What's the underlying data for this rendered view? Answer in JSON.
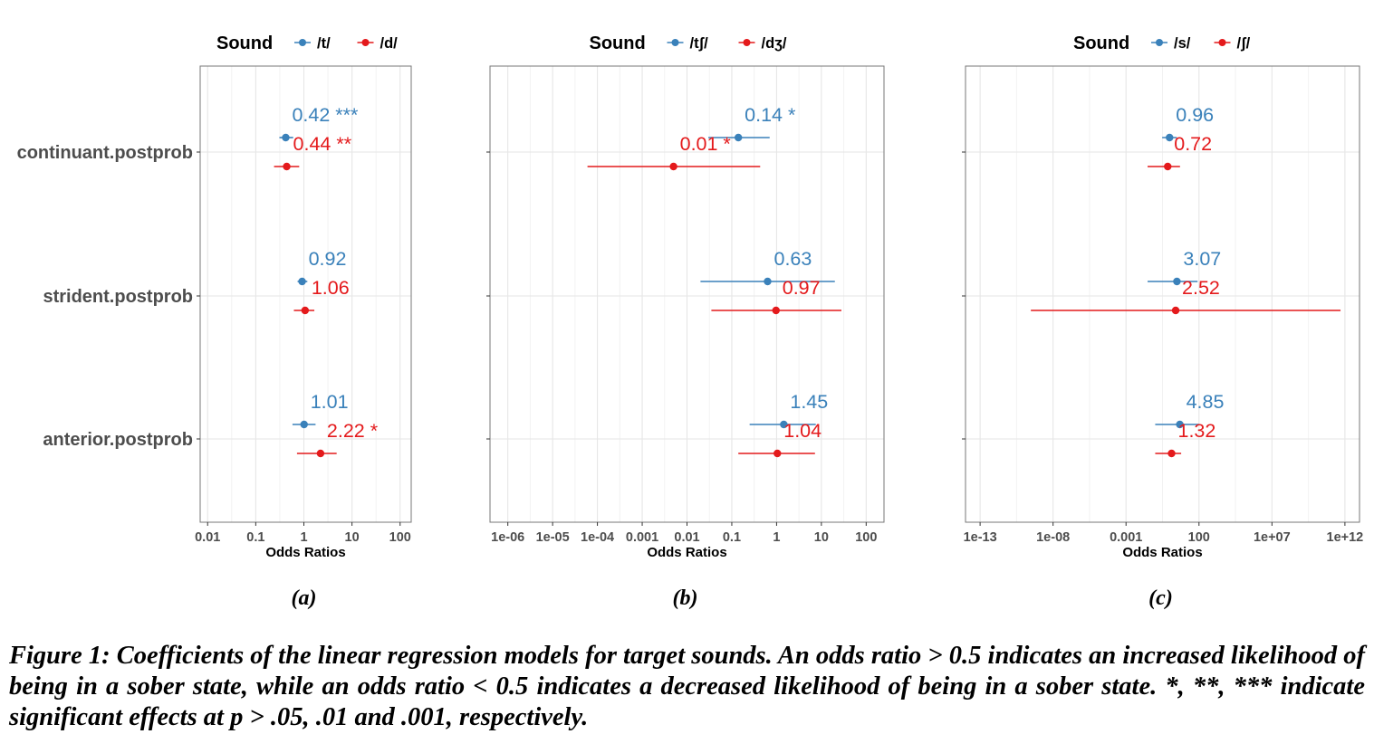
{
  "chart_data": [
    {
      "type": "forest",
      "panel_label": "(a)",
      "legend_title": "Sound",
      "xlabel": "Odds Ratios",
      "x_scale": "log10",
      "xlim": [
        0.007,
        170
      ],
      "x_ticks": [
        0.01,
        0.1,
        1,
        10,
        100
      ],
      "x_tick_labels": [
        "0.01",
        "0.1",
        "1",
        "10",
        "100"
      ],
      "categories": [
        "continuant.postprob",
        "strident.postprob",
        "anterior.postprob"
      ],
      "series": [
        {
          "name": "/t/",
          "color": "#3A81BA",
          "estimates": [
            0.42,
            0.92,
            1.01
          ],
          "ci_low": [
            0.31,
            0.74,
            0.58
          ],
          "ci_high": [
            0.6,
            1.18,
            1.75
          ],
          "labels": [
            "0.42 ***",
            "0.92",
            "1.01"
          ]
        },
        {
          "name": "/d/",
          "color": "#E41A1C",
          "estimates": [
            0.44,
            1.06,
            2.22
          ],
          "ci_low": [
            0.24,
            0.62,
            0.72
          ],
          "ci_high": [
            0.8,
            1.65,
            4.8
          ],
          "labels": [
            "0.44 **",
            "1.06",
            "2.22 *"
          ]
        }
      ]
    },
    {
      "type": "forest",
      "panel_label": "(b)",
      "legend_title": "Sound",
      "xlabel": "Odds Ratios",
      "x_scale": "log10",
      "xlim": [
        4e-07,
        250
      ],
      "x_ticks": [
        1e-06,
        1e-05,
        0.0001,
        0.001,
        0.01,
        0.1,
        1,
        10,
        100
      ],
      "x_tick_labels": [
        "1e-06",
        "1e-05",
        "1e-04",
        "0.001",
        "0.01",
        "0.1",
        "1",
        "10",
        "100"
      ],
      "categories": [
        "continuant.postprob",
        "strident.postprob",
        "anterior.postprob"
      ],
      "series": [
        {
          "name": "/tʃ/",
          "color": "#3A81BA",
          "estimates": [
            0.14,
            0.63,
            1.45
          ],
          "ci_low": [
            0.03,
            0.02,
            0.25
          ],
          "ci_high": [
            0.7,
            20,
            7.5
          ],
          "labels": [
            "0.14 *",
            "0.63",
            "1.45"
          ]
        },
        {
          "name": "/dʒ/",
          "color": "#E41A1C",
          "estimates": [
            0.005,
            0.97,
            1.04
          ],
          "ci_low": [
            6e-05,
            0.035,
            0.14
          ],
          "ci_high": [
            0.43,
            28,
            7.2
          ],
          "labels": [
            "0.01 *",
            "0.97",
            "1.04"
          ]
        }
      ]
    },
    {
      "type": "forest",
      "panel_label": "(c)",
      "legend_title": "Sound",
      "xlabel": "Odds Ratios",
      "x_scale": "log10",
      "xlim": [
        1e-14,
        10000000000000.0
      ],
      "x_ticks": [
        1e-13,
        1e-08,
        0.001,
        100,
        10000000.0,
        1000000000000.0
      ],
      "x_tick_labels": [
        "1e-13",
        "1e-08",
        "0.001",
        "100",
        "1e+07",
        "1e+12"
      ],
      "categories": [
        "continuant.postprob",
        "strident.postprob",
        "anterior.postprob"
      ],
      "series": [
        {
          "name": "/s/",
          "color": "#3A81BA",
          "estimates": [
            0.96,
            3.07,
            4.85
          ],
          "ci_low": [
            0.3,
            0.03,
            0.1
          ],
          "ci_high": [
            3,
            80,
            100
          ],
          "labels": [
            "0.96",
            "3.07",
            "4.85"
          ]
        },
        {
          "name": "/ʃ/",
          "color": "#E41A1C",
          "estimates": [
            0.72,
            2.52,
            1.32
          ],
          "ci_low": [
            0.03,
            3e-10,
            0.1
          ],
          "ci_high": [
            5,
            500000000000.0,
            6
          ],
          "labels": [
            "0.72",
            "2.52",
            "1.32"
          ]
        }
      ]
    }
  ],
  "caption": "Figure 1: Coefficients of the linear regression models for target sounds. An odds ratio > 0.5 indicates an increased likelihood of being in a sober state, while an odds ratio < 0.5 indicates a decreased likelihood of being in a sober state. *, **, *** indicate significant effects at p > .05, .01 and .001, respectively."
}
